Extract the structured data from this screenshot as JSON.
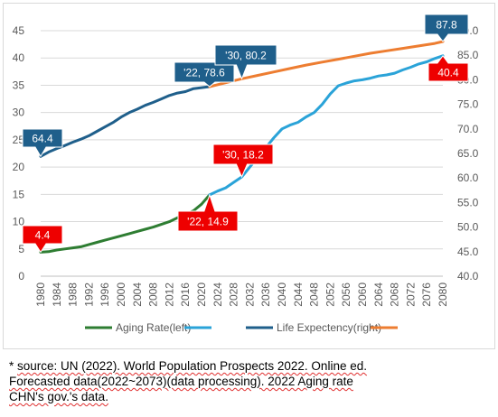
{
  "chart_data": {
    "type": "line",
    "x_start": 1980,
    "x_end": 2080,
    "x_ticks": [
      "1980",
      "1984",
      "1988",
      "1992",
      "1996",
      "2000",
      "2004",
      "2008",
      "2012",
      "2016",
      "2020",
      "2024",
      "2028",
      "2032",
      "2036",
      "2040",
      "2044",
      "2048",
      "2052",
      "2056",
      "2060",
      "2064",
      "2068",
      "2072",
      "2076",
      "2080"
    ],
    "y_left": {
      "lim": [
        0,
        45
      ],
      "ticks": [
        "0",
        "5",
        "10",
        "15",
        "20",
        "25",
        "30",
        "35",
        "40",
        "45"
      ]
    },
    "y_right": {
      "lim": [
        40,
        90
      ],
      "ticks": [
        "40.0",
        "45.0",
        "50.0",
        "55.0",
        "60.0",
        "65.0",
        "70.0",
        "75.0",
        "80.0",
        "85.0",
        "90.0"
      ]
    },
    "grid": true,
    "legend_position": "bottom",
    "series": [
      {
        "name": "Aging Rate(left)",
        "axis": "left",
        "color": "#2e7d32",
        "x": [
          1980,
          1982,
          1984,
          1986,
          1988,
          1990,
          1992,
          1994,
          1996,
          1998,
          2000,
          2002,
          2004,
          2006,
          2008,
          2010,
          2012,
          2014,
          2016,
          2018,
          2020,
          2022
        ],
        "y": [
          4.4,
          4.5,
          4.8,
          5.0,
          5.2,
          5.4,
          5.8,
          6.2,
          6.6,
          7.0,
          7.4,
          7.8,
          8.2,
          8.6,
          9.0,
          9.5,
          10.0,
          10.7,
          11.3,
          12.0,
          13.2,
          14.9
        ]
      },
      {
        "name": "",
        "axis": "left",
        "color": "#2aa3d8",
        "x": [
          2022,
          2024,
          2026,
          2028,
          2030,
          2032,
          2034,
          2036,
          2038,
          2040,
          2042,
          2044,
          2046,
          2048,
          2050,
          2052,
          2054,
          2056,
          2058,
          2060,
          2062,
          2064,
          2066,
          2068,
          2070,
          2072,
          2074,
          2076,
          2078,
          2080
        ],
        "y": [
          14.9,
          15.6,
          16.2,
          17.2,
          18.2,
          20.0,
          21.8,
          23.6,
          25.4,
          27.0,
          27.7,
          28.2,
          29.2,
          30.0,
          31.5,
          33.4,
          34.9,
          35.4,
          35.8,
          36.0,
          36.3,
          36.7,
          36.9,
          37.2,
          37.8,
          38.3,
          38.9,
          39.3,
          39.9,
          40.4
        ]
      },
      {
        "name": "Life Expectency(right)",
        "axis": "right",
        "color": "#1f5f8b",
        "x": [
          1980,
          1982,
          1984,
          1986,
          1988,
          1990,
          1992,
          1994,
          1996,
          1998,
          2000,
          2002,
          2004,
          2006,
          2008,
          2010,
          2012,
          2014,
          2016,
          2018,
          2020,
          2022
        ],
        "y": [
          64.4,
          65.3,
          66.0,
          66.6,
          67.3,
          67.9,
          68.6,
          69.5,
          70.4,
          71.3,
          72.4,
          73.3,
          74.0,
          74.8,
          75.4,
          76.1,
          76.8,
          77.3,
          77.6,
          78.2,
          78.4,
          78.6
        ]
      },
      {
        "name": "",
        "axis": "right",
        "color": "#ed7d31",
        "x": [
          2022,
          2026,
          2030,
          2034,
          2038,
          2042,
          2046,
          2050,
          2054,
          2058,
          2062,
          2066,
          2070,
          2074,
          2078,
          2080
        ],
        "y": [
          78.6,
          79.4,
          80.2,
          80.9,
          81.6,
          82.3,
          83.0,
          83.6,
          84.2,
          84.8,
          85.4,
          85.9,
          86.4,
          86.9,
          87.4,
          87.8
        ]
      }
    ],
    "annotations": [
      {
        "text": "4.4",
        "style": "red",
        "x": 1980,
        "y": 4.4,
        "axis": "left"
      },
      {
        "text": "'22, 14.9",
        "style": "red",
        "x": 2022,
        "y": 14.9,
        "axis": "left"
      },
      {
        "text": "'30, 18.2",
        "style": "red",
        "x": 2030,
        "y": 18.2,
        "axis": "left"
      },
      {
        "text": "40.4",
        "style": "red",
        "x": 2080,
        "y": 40.4,
        "axis": "left"
      },
      {
        "text": "64.4",
        "style": "blue",
        "x": 1980,
        "y": 64.4,
        "axis": "right"
      },
      {
        "text": "'22, 78.6",
        "style": "blue",
        "x": 2022,
        "y": 78.6,
        "axis": "right"
      },
      {
        "text": "'30, 80.2",
        "style": "blue",
        "x": 2030,
        "y": 80.2,
        "axis": "right"
      },
      {
        "text": "87.8",
        "style": "blue",
        "x": 2080,
        "y": 87.8,
        "axis": "right"
      }
    ],
    "colors": {
      "red_callout": "#ee0000",
      "blue_callout": "#1f5f8b",
      "grid": "#d9d9d9"
    }
  },
  "source_note": {
    "line1_prefix": "* ",
    "line1": "source: UN (2022). World Population Prospects 2022. Online ed.",
    "line2": "Forecasted data(2022~2073)(data processing). 2022 Aging rate",
    "line3": "CHN's gov.'s data."
  }
}
